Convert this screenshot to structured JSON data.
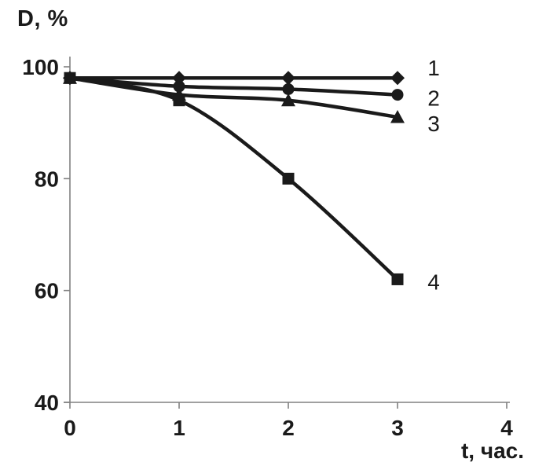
{
  "page": {
    "background": "#ffffff"
  },
  "chart_data": {
    "type": "line",
    "title": "",
    "ylabel": "D, %",
    "xlabel": "t, час.",
    "x": [
      0,
      1,
      2,
      3
    ],
    "xlim": [
      0,
      4
    ],
    "ylim": [
      40,
      100
    ],
    "x_ticks": [
      "0",
      "1",
      "2",
      "3",
      "4"
    ],
    "y_ticks": [
      "40",
      "60",
      "80",
      "100"
    ],
    "grid": false,
    "line_smoothing": true,
    "legend_position": "right-of-last-point",
    "line_color": "#1a1a1a",
    "axis_color": "#808080",
    "text_color": "#1a1a1a",
    "series": [
      {
        "name": "1",
        "marker": "diamond",
        "values": [
          98,
          98,
          98,
          98
        ]
      },
      {
        "name": "2",
        "marker": "circle",
        "values": [
          98,
          96.5,
          96,
          95
        ]
      },
      {
        "name": "3",
        "marker": "triangle",
        "values": [
          98,
          95,
          94,
          91
        ]
      },
      {
        "name": "4",
        "marker": "square",
        "values": [
          98,
          94,
          80,
          62
        ]
      }
    ]
  }
}
